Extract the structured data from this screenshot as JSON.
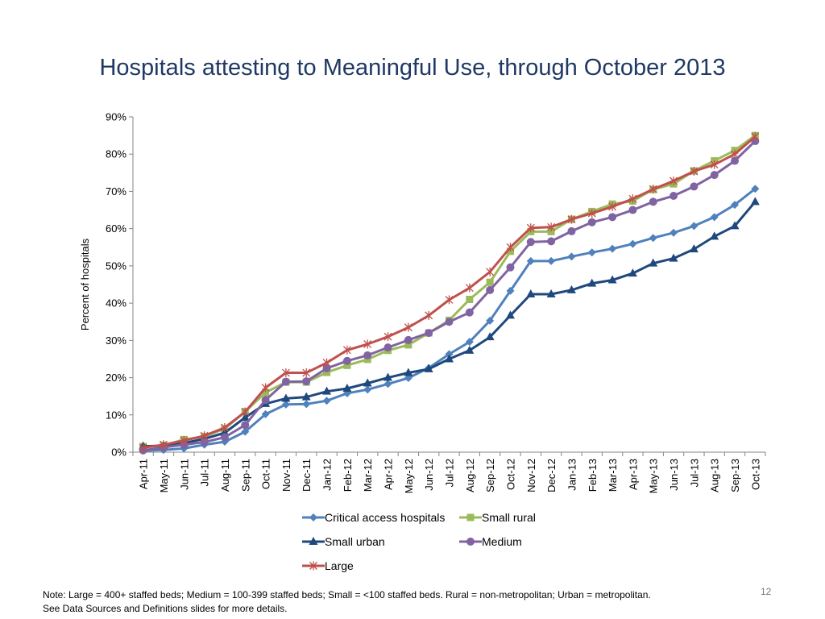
{
  "title": "Hospitals attesting to Meaningful Use, through October 2013",
  "footer": {
    "note_line1": "Note: Large = 400+ staffed beds; Medium = 100-399 staffed beds; Small = <100 staffed beds. Rural = non-metropolitan; Urban = metropolitan.",
    "note_line2": "See Data Sources and Definitions slides for more details.",
    "page_number": "12"
  },
  "chart_data": {
    "type": "line",
    "title": "Hospitals attesting to Meaningful Use, through October 2013",
    "xlabel": "",
    "ylabel": "Percent of hospitals",
    "ylim": [
      0,
      90
    ],
    "yticks": [
      0,
      10,
      20,
      30,
      40,
      50,
      60,
      70,
      80,
      90
    ],
    "ytick_labels": [
      "0%",
      "10%",
      "20%",
      "30%",
      "40%",
      "50%",
      "60%",
      "70%",
      "80%",
      "90%"
    ],
    "grid": false,
    "legend_position": "bottom",
    "categories": [
      "Apr-11",
      "May-11",
      "Jun-11",
      "Jul-11",
      "Aug-11",
      "Sep-11",
      "Oct-11",
      "Nov-11",
      "Dec-11",
      "Jan-12",
      "Feb-12",
      "Mar-12",
      "Apr-12",
      "May-12",
      "Jun-12",
      "Jul-12",
      "Aug-12",
      "Sep-12",
      "Oct-12",
      "Nov-12",
      "Dec-12",
      "Jan-13",
      "Feb-13",
      "Mar-13",
      "Apr-13",
      "May-13",
      "Jun-13",
      "Jul-13",
      "Aug-13",
      "Sep-13",
      "Oct-13"
    ],
    "series": [
      {
        "name": "Critical access hospitals",
        "color": "#4f81bd",
        "marker": "diamond",
        "values": [
          0.4,
          0.6,
          1.0,
          2.0,
          2.8,
          5.5,
          10.2,
          12.8,
          12.9,
          13.8,
          15.8,
          16.8,
          18.3,
          19.9,
          22.6,
          26.3,
          29.6,
          35.3,
          43.3,
          51.3,
          51.3,
          52.5,
          53.6,
          54.6,
          55.9,
          57.5,
          58.9,
          60.7,
          63.1,
          66.4,
          70.7
        ]
      },
      {
        "name": "Small rural",
        "color": "#9bbb59",
        "marker": "square",
        "values": [
          1.5,
          1.8,
          3.4,
          4.2,
          6.3,
          10.9,
          16.0,
          18.8,
          18.8,
          21.4,
          23.3,
          24.9,
          27.3,
          28.8,
          32.0,
          35.4,
          41.0,
          45.6,
          53.9,
          59.2,
          59.2,
          62.5,
          64.6,
          66.6,
          67.4,
          70.5,
          72.0,
          75.5,
          78.2,
          81.0,
          85.0
        ]
      },
      {
        "name": "Small urban",
        "color": "#1f497d",
        "marker": "triangle",
        "values": [
          1.6,
          1.7,
          2.4,
          3.6,
          5.2,
          9.3,
          13.0,
          14.4,
          14.8,
          16.3,
          17.1,
          18.5,
          20.0,
          21.3,
          22.3,
          25.0,
          27.3,
          30.9,
          36.7,
          42.4,
          42.4,
          43.5,
          45.3,
          46.2,
          48.0,
          50.7,
          52.0,
          54.5,
          57.9,
          60.7,
          67.2
        ]
      },
      {
        "name": "Medium",
        "color": "#8064a2",
        "marker": "circle",
        "values": [
          0.5,
          1.3,
          2.0,
          2.7,
          4.0,
          7.3,
          14.0,
          18.9,
          19.0,
          22.5,
          24.5,
          26.0,
          28.1,
          30.1,
          32.0,
          35.0,
          37.5,
          43.5,
          49.6,
          56.4,
          56.6,
          59.3,
          61.7,
          63.1,
          65.0,
          67.2,
          68.8,
          71.3,
          74.4,
          78.2,
          83.5
        ]
      },
      {
        "name": "Large",
        "color": "#c0504d",
        "marker": "star",
        "values": [
          1.2,
          2.0,
          3.1,
          4.4,
          6.6,
          10.8,
          17.3,
          21.3,
          21.3,
          24.0,
          27.4,
          29.0,
          31.0,
          33.5,
          36.7,
          40.9,
          44.1,
          48.4,
          55.0,
          60.2,
          60.4,
          62.5,
          64.1,
          65.9,
          68.0,
          70.6,
          72.8,
          75.4,
          77.2,
          80.0,
          84.7
        ]
      }
    ]
  }
}
